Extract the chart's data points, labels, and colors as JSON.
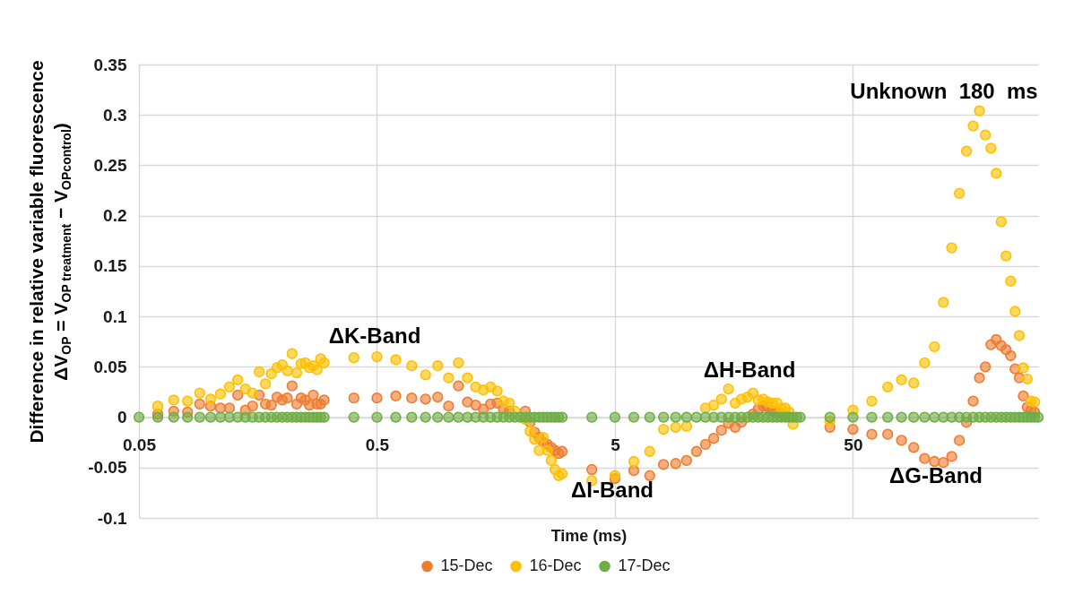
{
  "chart_data": {
    "type": "scatter",
    "xlabel": "Time (ms)",
    "ylabel": "Difference in relative variable fluorescence\nΔV$_{OP}$ = V$_{OP treatment}$ − V$_{OPcontrol}$)",
    "log": "x",
    "grid": true,
    "legend": "bottom",
    "marker": "circle",
    "xlim": [
      0.05,
      300
    ],
    "xticks": [
      0.05,
      0.5,
      5,
      50
    ],
    "ylim": [
      -0.1,
      0.35
    ],
    "yticks": [
      -0.1,
      -0.05,
      0,
      0.05,
      0.1,
      0.15,
      0.2,
      0.25,
      0.3,
      0.35
    ],
    "x": [
      0.05,
      0.06,
      0.07,
      0.08,
      0.09,
      0.1,
      0.11,
      0.12,
      0.13,
      0.14,
      0.15,
      0.16,
      0.17,
      0.18,
      0.19,
      0.2,
      0.21,
      0.22,
      0.23,
      0.24,
      0.25,
      0.26,
      0.27,
      0.28,
      0.29,
      0.3,
      0.4,
      0.5,
      0.6,
      0.7,
      0.8,
      0.9,
      1,
      1.1,
      1.2,
      1.3,
      1.4,
      1.5,
      1.6,
      1.7,
      1.8,
      1.9,
      2,
      2.1,
      2.2,
      2.3,
      2.4,
      2.5,
      2.6,
      2.7,
      2.8,
      2.9,
      3,
      4,
      5,
      6,
      7,
      8,
      9,
      10,
      11,
      12,
      13,
      14,
      15,
      16,
      17,
      18,
      19,
      20,
      21,
      22,
      23,
      24,
      25,
      26,
      27,
      28,
      29,
      30,
      40,
      50,
      60,
      70,
      80,
      90,
      100,
      110,
      120,
      130,
      140,
      150,
      160,
      170,
      180,
      190,
      200,
      210,
      220,
      230,
      240,
      250,
      260,
      270,
      280,
      290,
      300
    ],
    "series": [
      {
        "name": "15-Dec",
        "color": "#ed7d31",
        "values": [
          null,
          0.003,
          0.006,
          0.005,
          0.013,
          0.011,
          0.009,
          0.009,
          0.022,
          0.007,
          0.011,
          0.022,
          0.013,
          0.012,
          0.02,
          0.017,
          0.019,
          0.031,
          0.013,
          0.019,
          0.017,
          0.012,
          0.022,
          0.013,
          0.013,
          0.017,
          0.019,
          0.019,
          0.021,
          0.019,
          0.018,
          0.02,
          0.011,
          0.031,
          0.015,
          0.012,
          0.008,
          0.013,
          0.014,
          0.008,
          0.006,
          null,
          null,
          0.006,
          -0.005,
          -0.015,
          -0.02,
          -0.025,
          -0.027,
          -0.03,
          -0.033,
          -0.036,
          -0.034,
          -0.052,
          -0.061,
          -0.053,
          -0.058,
          -0.047,
          -0.046,
          -0.043,
          -0.034,
          -0.027,
          -0.021,
          -0.013,
          -0.006,
          -0.01,
          -0.005,
          null,
          0.003,
          0.008,
          0.011,
          0.01,
          0.006,
          0.004,
          0.003,
          0.002,
          null,
          null,
          null,
          null,
          -0.01,
          -0.012,
          -0.017,
          -0.017,
          -0.023,
          -0.03,
          -0.041,
          -0.044,
          -0.045,
          -0.039,
          -0.023,
          -0.005,
          0.016,
          0.039,
          0.05,
          0.072,
          0.077,
          0.071,
          0.067,
          0.061,
          0.048,
          0.039,
          0.021,
          0.01,
          0.007,
          0.005,
          null
        ]
      },
      {
        "name": "16-Dec",
        "color": "#ffc000",
        "values": [
          null,
          0.011,
          0.017,
          0.016,
          0.024,
          0.018,
          0.023,
          0.03,
          0.037,
          0.028,
          0.024,
          0.045,
          0.033,
          0.043,
          0.049,
          0.052,
          0.046,
          0.063,
          0.044,
          0.053,
          0.054,
          0.049,
          0.051,
          0.047,
          0.058,
          0.054,
          0.059,
          0.06,
          0.057,
          0.051,
          0.042,
          0.051,
          0.039,
          0.054,
          0.039,
          0.03,
          0.027,
          0.03,
          0.026,
          0.016,
          0.014,
          0.006,
          null,
          -0.002,
          -0.014,
          -0.022,
          -0.033,
          -0.02,
          -0.033,
          -0.043,
          -0.052,
          -0.058,
          -0.056,
          -0.063,
          -0.058,
          -0.044,
          -0.034,
          -0.012,
          -0.01,
          -0.009,
          null,
          0.009,
          0.012,
          0.018,
          0.028,
          0.014,
          0.018,
          0.02,
          0.024,
          0.017,
          0.018,
          0.015,
          0.014,
          0.014,
          0.009,
          0.009,
          0.005,
          -0.007,
          null,
          null,
          -0.004,
          0.007,
          0.016,
          0.03,
          0.037,
          0.034,
          0.054,
          0.07,
          0.114,
          0.168,
          0.222,
          0.264,
          0.289,
          0.304,
          0.28,
          0.267,
          0.242,
          0.194,
          0.16,
          0.135,
          0.105,
          0.081,
          0.049,
          0.038,
          0.016,
          0.015,
          null
        ]
      },
      {
        "name": "17-Dec",
        "color": "#70ad47",
        "values": [
          0,
          0,
          0,
          0,
          0,
          0,
          0,
          0,
          0,
          0,
          0,
          0,
          0,
          0,
          0,
          0,
          0,
          0,
          0,
          0,
          0,
          0,
          0,
          0,
          0,
          0,
          0,
          0,
          0,
          0,
          0,
          0,
          0,
          0,
          0,
          0,
          0,
          0,
          0,
          0,
          0,
          0,
          0,
          0,
          0,
          0,
          0,
          0,
          0,
          0,
          0,
          0,
          0,
          0,
          0,
          0,
          0,
          0,
          0,
          0,
          0,
          0,
          0,
          0,
          0,
          0,
          0,
          0,
          0,
          0,
          0,
          0,
          0,
          0,
          0,
          0,
          0,
          0,
          0,
          0,
          0,
          0,
          0,
          0,
          0,
          0,
          0,
          0,
          0,
          0,
          0,
          0,
          0,
          0,
          0,
          0,
          0,
          0,
          0,
          0,
          0,
          0,
          0,
          0,
          0,
          0,
          0
        ]
      }
    ],
    "annotations": [
      "ΔK-Band",
      "ΔI-Band",
      "ΔH-Band",
      "ΔG-Band",
      "Unknown  180  ms"
    ]
  }
}
